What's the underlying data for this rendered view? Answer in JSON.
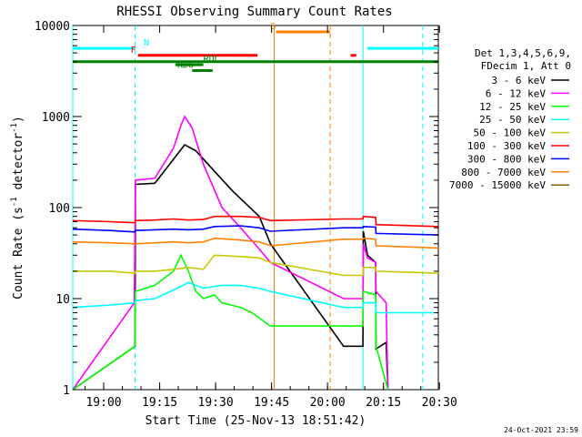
{
  "chart_data": {
    "type": "line",
    "title": "RHESSI Observing Summary Count Rates",
    "xlabel": "Start Time (25-Nov-13 18:51:42)",
    "ylabel_main": "Count Rate (s",
    "ylabel_sup1": "-1",
    "ylabel_mid": " detector",
    "ylabel_sup2": "-1",
    "ylabel_end": ")",
    "footer": "24-Oct-2021 23:59",
    "x_unit": "minutes since 18:51:42",
    "x_range": [
      0,
      98
    ],
    "y_scale": "log",
    "y_range": [
      1,
      10000
    ],
    "x_ticks": [
      {
        "label": "19:00",
        "t": 8.3
      },
      {
        "label": "19:15",
        "t": 23.3
      },
      {
        "label": "19:30",
        "t": 38.3
      },
      {
        "label": "19:45",
        "t": 53.3
      },
      {
        "label": "20:00",
        "t": 68.3
      },
      {
        "label": "20:15",
        "t": 83.3
      },
      {
        "label": "20:30",
        "t": 98.3
      }
    ],
    "y_ticks": [
      {
        "label": "1",
        "v": 1
      },
      {
        "label": "10",
        "v": 10
      },
      {
        "label": "100",
        "v": 100
      },
      {
        "label": "1000",
        "v": 1000
      },
      {
        "label": "10000",
        "v": 10000
      }
    ],
    "legend_header": [
      "Det 1,3,4,5,6,9,",
      "FDecim 1, Att 0"
    ],
    "series": [
      {
        "name": "3 - 6 keV",
        "color": "#000000",
        "points": [
          [
            0.0,
            1.0
          ],
          [
            16.7,
            3.0
          ],
          [
            16.8,
            180
          ],
          [
            22.0,
            185
          ],
          [
            26.0,
            300
          ],
          [
            30.0,
            490
          ],
          [
            33.0,
            420
          ],
          [
            38.0,
            250
          ],
          [
            43.0,
            150
          ],
          [
            50.0,
            80
          ],
          [
            53.0,
            40
          ],
          [
            72.6,
            3.0
          ],
          [
            77.8,
            3.0
          ],
          [
            77.9,
            55
          ],
          [
            79.0,
            30
          ],
          [
            81.2,
            25
          ],
          [
            81.3,
            2.8
          ],
          [
            84.0,
            3.3
          ],
          [
            84.5,
            1.0
          ]
        ]
      },
      {
        "name": "6 - 12 keV",
        "color": "#ff00ff",
        "points": [
          [
            0.0,
            1.0
          ],
          [
            16.5,
            9.0
          ],
          [
            16.8,
            200
          ],
          [
            22.0,
            210
          ],
          [
            27.0,
            450
          ],
          [
            29.0,
            800
          ],
          [
            30.0,
            1000
          ],
          [
            32.0,
            750
          ],
          [
            35.0,
            300
          ],
          [
            40.0,
            100
          ],
          [
            45.0,
            60
          ],
          [
            50.0,
            35
          ],
          [
            53.0,
            25
          ],
          [
            72.6,
            10.0
          ],
          [
            77.8,
            10.0
          ],
          [
            77.9,
            40
          ],
          [
            79.0,
            28
          ],
          [
            81.2,
            25
          ],
          [
            81.3,
            12
          ],
          [
            84.0,
            9
          ],
          [
            84.5,
            1.0
          ]
        ]
      },
      {
        "name": "12 - 25 keV",
        "color": "#00ff00",
        "points": [
          [
            0.0,
            1.0
          ],
          [
            16.7,
            3.0
          ],
          [
            16.8,
            12
          ],
          [
            22.0,
            14
          ],
          [
            27.0,
            20
          ],
          [
            29.0,
            30
          ],
          [
            31.0,
            20
          ],
          [
            33.0,
            12
          ],
          [
            35.0,
            10
          ],
          [
            38.0,
            11
          ],
          [
            40.0,
            9
          ],
          [
            45.0,
            8
          ],
          [
            48.0,
            7
          ],
          [
            53.0,
            5
          ],
          [
            72.6,
            5.0
          ],
          [
            77.8,
            5.0
          ],
          [
            77.9,
            12
          ],
          [
            81.2,
            11
          ],
          [
            81.3,
            3
          ],
          [
            84.5,
            1.0
          ]
        ]
      },
      {
        "name": "25 - 50 keV",
        "color": "#00ffff",
        "points": [
          [
            0.0,
            8.0
          ],
          [
            10.0,
            8.5
          ],
          [
            16.7,
            9.0
          ],
          [
            16.8,
            9.5
          ],
          [
            22.0,
            10
          ],
          [
            28.0,
            13
          ],
          [
            31.0,
            15
          ],
          [
            35.0,
            13
          ],
          [
            40.0,
            14
          ],
          [
            45.0,
            14
          ],
          [
            50.0,
            13
          ],
          [
            53.0,
            12
          ],
          [
            72.6,
            8.0
          ],
          [
            77.8,
            8.0
          ],
          [
            77.9,
            9
          ],
          [
            81.2,
            9
          ],
          [
            81.3,
            7
          ],
          [
            98.0,
            7
          ]
        ]
      },
      {
        "name": "50 - 100 keV",
        "color": "#c8c800",
        "points": [
          [
            0.0,
            20
          ],
          [
            10.0,
            20
          ],
          [
            16.7,
            19
          ],
          [
            16.8,
            20
          ],
          [
            22.0,
            20
          ],
          [
            27.0,
            21
          ],
          [
            31.0,
            22
          ],
          [
            35.0,
            21
          ],
          [
            38.0,
            30
          ],
          [
            45.0,
            29
          ],
          [
            50.0,
            28
          ],
          [
            53.0,
            25
          ],
          [
            72.6,
            18
          ],
          [
            77.8,
            18
          ],
          [
            77.9,
            22
          ],
          [
            81.2,
            22
          ],
          [
            81.3,
            20
          ],
          [
            98.0,
            19
          ]
        ]
      },
      {
        "name": "100 - 300 keV",
        "color": "#ff0000",
        "points": [
          [
            0.0,
            72
          ],
          [
            10.0,
            70
          ],
          [
            16.7,
            68
          ],
          [
            16.8,
            72
          ],
          [
            22.0,
            73
          ],
          [
            27.0,
            75
          ],
          [
            31.0,
            73
          ],
          [
            35.0,
            74
          ],
          [
            38.0,
            80
          ],
          [
            45.0,
            80
          ],
          [
            50.0,
            78
          ],
          [
            53.0,
            72
          ],
          [
            72.6,
            75
          ],
          [
            77.8,
            75
          ],
          [
            77.9,
            80
          ],
          [
            81.2,
            78
          ],
          [
            81.3,
            65
          ],
          [
            98.0,
            62
          ]
        ]
      },
      {
        "name": "300 - 800 keV",
        "color": "#0000ff",
        "points": [
          [
            0.0,
            58
          ],
          [
            10.0,
            56
          ],
          [
            16.7,
            54
          ],
          [
            16.8,
            56
          ],
          [
            22.0,
            57
          ],
          [
            27.0,
            58
          ],
          [
            31.0,
            57
          ],
          [
            35.0,
            58
          ],
          [
            38.0,
            62
          ],
          [
            45.0,
            63
          ],
          [
            50.0,
            60
          ],
          [
            53.0,
            55
          ],
          [
            72.6,
            60
          ],
          [
            77.8,
            60
          ],
          [
            77.9,
            62
          ],
          [
            81.2,
            61
          ],
          [
            81.3,
            52
          ],
          [
            98.0,
            50
          ]
        ]
      },
      {
        "name": "800 - 7000 keV",
        "color": "#ff8000",
        "points": [
          [
            0.0,
            42
          ],
          [
            10.0,
            41
          ],
          [
            16.7,
            40
          ],
          [
            16.8,
            40
          ],
          [
            22.0,
            41
          ],
          [
            27.0,
            42
          ],
          [
            31.0,
            41
          ],
          [
            35.0,
            42
          ],
          [
            38.0,
            46
          ],
          [
            45.0,
            44
          ],
          [
            50.0,
            42
          ],
          [
            53.0,
            38
          ],
          [
            72.6,
            45
          ],
          [
            77.8,
            45
          ],
          [
            77.9,
            46
          ],
          [
            81.2,
            45
          ],
          [
            81.3,
            38
          ],
          [
            98.0,
            36
          ]
        ]
      },
      {
        "name": "7000 - 15000 keV",
        "color": "#806000",
        "points": []
      }
    ],
    "flag_bars": [
      {
        "label": "N",
        "color": "#00ffff",
        "y": 5600,
        "segments": [
          [
            0.0,
            16.7
          ],
          [
            79.0,
            98.0
          ]
        ],
        "label_at": 19.0
      },
      {
        "label": "F",
        "color": "#ff0000",
        "y": 4700,
        "segments": [
          [
            17.5,
            49.5
          ],
          [
            74.5,
            76.0
          ]
        ],
        "label_at": 15.5
      },
      {
        "label": "",
        "color": "#008000",
        "y": 4000,
        "segments": [
          [
            0.0,
            98.0
          ]
        ],
        "label_at": null
      },
      {
        "label": "RDC",
        "color": "#008000",
        "y": 3700,
        "segments": [
          [
            27.5,
            35.0
          ]
        ],
        "label_at": 35.0
      },
      {
        "label": "RD6",
        "color": "#008000",
        "y": 3200,
        "segments": [
          [
            32.0,
            37.5
          ]
        ],
        "label_at": 28.0
      },
      {
        "label": "S",
        "color": "#ff8000",
        "y": 8500,
        "segments": [
          [
            54.5,
            69.0
          ]
        ],
        "label_at": 53.0
      }
    ],
    "vlines": [
      {
        "t": 0.0,
        "color": "#00ffff",
        "dashed": false
      },
      {
        "t": 16.7,
        "color": "#00ffff",
        "dashed": true
      },
      {
        "t": 54.0,
        "color": "#ff8000",
        "dashed": false
      },
      {
        "t": 69.0,
        "color": "#ff8000",
        "dashed": true
      },
      {
        "t": 77.8,
        "color": "#00ffff",
        "dashed": false
      },
      {
        "t": 93.8,
        "color": "#00ffff",
        "dashed": true
      }
    ]
  }
}
